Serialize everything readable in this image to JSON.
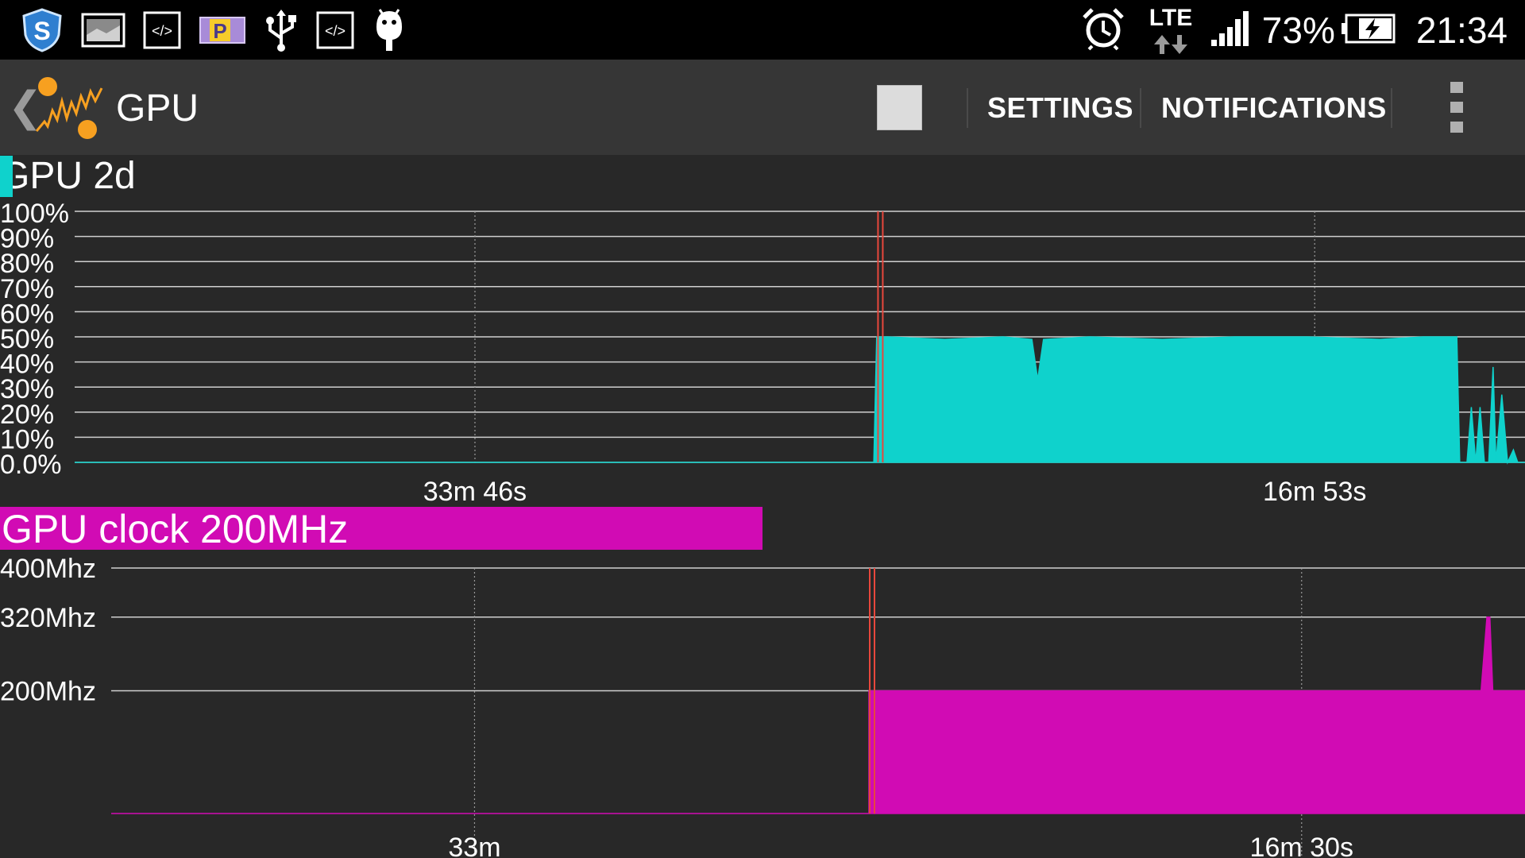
{
  "status_bar": {
    "left_icons": [
      "shield-icon",
      "image-thumbnail-icon",
      "code-icon",
      "parking-icon",
      "usb-icon",
      "code-icon",
      "android-icon"
    ],
    "lte_label": "LTE",
    "battery_percent": "73%",
    "time": "21:34"
  },
  "action_bar": {
    "title": "GPU",
    "settings_label": "SETTINGS",
    "notifications_label": "NOTIFICATIONS"
  },
  "colors": {
    "cyan": "#0fd2cc",
    "magenta": "#d10bb4",
    "marker": "#e8473c",
    "background": "#282828",
    "actionbar": "#363636"
  },
  "chart_data": [
    {
      "type": "area",
      "title": "GPU 2d",
      "y_tick_labels": [
        "100%",
        "90%",
        "80%",
        "70%",
        "60%",
        "50%",
        "40%",
        "30%",
        "20%",
        "10%",
        "0.0%"
      ],
      "x_tick_labels": [
        "33m 46s",
        "16m 53s"
      ],
      "ylim": [
        0,
        100
      ],
      "grid": true,
      "series": [
        {
          "color": "#0fd2cc",
          "x_fraction": [
            0.0,
            0.551,
            0.553,
            0.56,
            0.6,
            0.64,
            0.66,
            0.664,
            0.668,
            0.7,
            0.75,
            0.8,
            0.85,
            0.9,
            0.93,
            0.953,
            0.955,
            0.96,
            0.963,
            0.966,
            0.969,
            0.972,
            0.975,
            0.978,
            0.98,
            0.984,
            0.988,
            0.992,
            0.995,
            1.0
          ],
          "values": [
            0,
            0,
            50,
            50,
            49,
            50,
            49,
            33,
            49,
            50,
            49,
            50,
            50,
            49,
            50,
            50,
            0,
            0,
            22,
            0,
            22,
            0,
            0,
            38,
            0,
            27,
            0,
            5,
            0,
            0
          ]
        }
      ],
      "marker_x_fraction": 0.555
    },
    {
      "type": "area",
      "title": "GPU clock 200MHz",
      "y_tick_labels": [
        "400Mhz",
        "320Mhz",
        "200Mhz"
      ],
      "x_tick_labels": [
        "33m",
        "16m 30s"
      ],
      "ylim": [
        0,
        400
      ],
      "grid": true,
      "series": [
        {
          "color": "#d10bb4",
          "x_fraction": [
            0.0,
            0.551,
            0.552,
            0.97,
            0.974,
            0.976,
            0.978,
            1.0
          ],
          "values": [
            0,
            0,
            200,
            200,
            320,
            320,
            200,
            200
          ]
        }
      ],
      "marker_x_fraction": 0.555
    }
  ]
}
